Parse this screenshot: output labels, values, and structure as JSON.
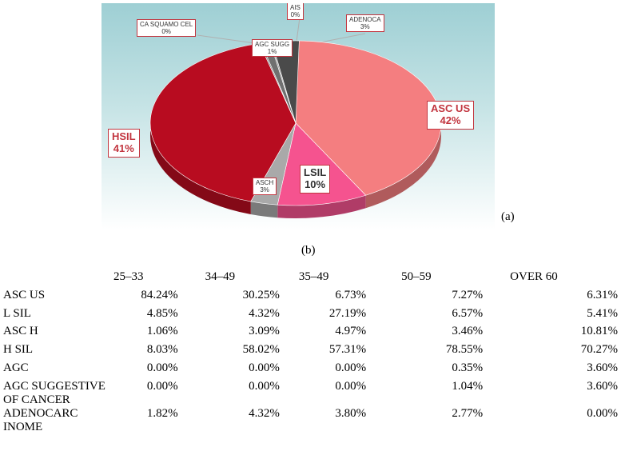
{
  "chart_data": {
    "type": "pie",
    "slices": [
      {
        "label": "ASC US",
        "percent_label": "42%",
        "value": 42,
        "color": "#f47e80"
      },
      {
        "label": "LSIL",
        "percent_label": "10%",
        "value": 10,
        "color": "#f5538f"
      },
      {
        "label": "ASCH",
        "percent_label": "3%",
        "value": 3,
        "color": "#a9a9a9"
      },
      {
        "label": "HSIL",
        "percent_label": "41%",
        "value": 41,
        "color": "#b80c20"
      },
      {
        "label": "CA SQUAMO CEL",
        "percent_label": "0%",
        "value": 0,
        "color": "#8c8c8c"
      },
      {
        "label": "AGC SUGG",
        "percent_label": "1%",
        "value": 1,
        "color": "#707070"
      },
      {
        "label": "AIS",
        "percent_label": "0%",
        "value": 0,
        "color": "#9a9a9a"
      },
      {
        "label": "ADENOCA",
        "percent_label": "3%",
        "value": 3,
        "color": "#4a4a4a"
      }
    ]
  },
  "labels": {
    "figure_a": "(a)",
    "figure_b": "(b)"
  },
  "table": {
    "headers": [
      "",
      "25–33",
      "34–49",
      "35–49",
      "50–59",
      "OVER 60"
    ],
    "rows": [
      {
        "category": "ASC US",
        "values": [
          "84.24%",
          "30.25%",
          "6.73%",
          "7.27%",
          "6.31%"
        ]
      },
      {
        "category": "L SIL",
        "values": [
          "4.85%",
          "4.32%",
          "27.19%",
          "6.57%",
          "5.41%"
        ]
      },
      {
        "category": "ASC H",
        "values": [
          "1.06%",
          "3.09%",
          "4.97%",
          "3.46%",
          "10.81%"
        ]
      },
      {
        "category": "H SIL",
        "values": [
          "8.03%",
          "58.02%",
          "57.31%",
          "78.55%",
          "70.27%"
        ]
      },
      {
        "category": "AGC",
        "values": [
          "0.00%",
          "0.00%",
          "0.00%",
          "0.35%",
          "3.60%"
        ]
      },
      {
        "category": "AGC SUGGESTIVE OF CANCER",
        "values": [
          "0.00%",
          "0.00%",
          "0.00%",
          "1.04%",
          "3.60%"
        ]
      },
      {
        "category": "ADENOCARC INOME",
        "values": [
          "1.82%",
          "4.32%",
          "3.80%",
          "2.77%",
          "0.00%"
        ]
      }
    ]
  }
}
